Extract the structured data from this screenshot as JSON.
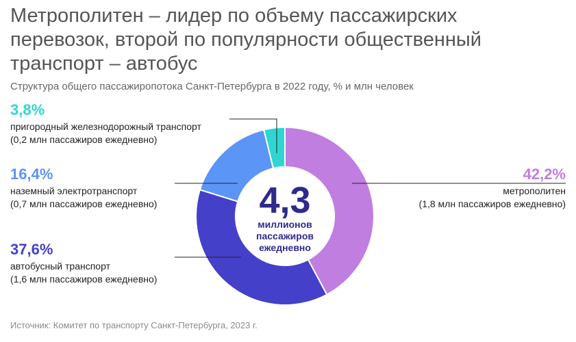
{
  "title": "Метрополитен – лидер по объему пассажирских перевозок, второй по популярности общественный транспорт – автобус",
  "subtitle": "Структура общего пассажиропотока Санкт-Петербурга в 2022 году, % и млн человек",
  "source": "Источник: Комитет по транспорту Санкт-Петербурга, 2023 г.",
  "chart_data": {
    "type": "pie",
    "variant": "donut",
    "categories": [
      "метрополитен",
      "автобусный транспорт",
      "наземный электротранспорт",
      "пригородный железнодорожный транспорт"
    ],
    "values": [
      42.2,
      37.6,
      16.4,
      3.8
    ],
    "value_labels": [
      "42,2%",
      "37,6%",
      "16,4%",
      "3,8%"
    ],
    "sublabels": [
      "(1,8 млн пассажиров ежедневно)",
      "(1,6 млн пассажиров ежедневно)",
      "(0,7 млн пассажиров ежедневно)",
      "(0,2 млн пассажиров ежедневно)"
    ],
    "colors": [
      "#c07ee0",
      "#4540c9",
      "#5b95f5",
      "#2ed6d2"
    ],
    "center": {
      "value": "4,3",
      "lines": [
        "миллионов",
        "пассажиров",
        "ежедневно"
      ]
    }
  }
}
